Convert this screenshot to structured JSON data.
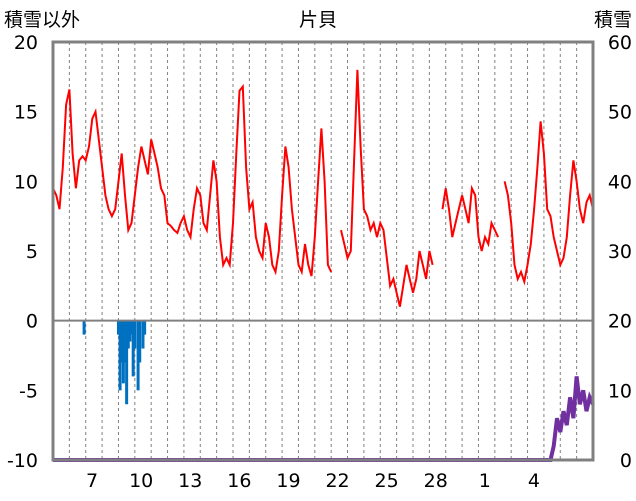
{
  "chart_data": {
    "type": "combo",
    "title": "片貝",
    "left_axis_label": "積雪以外",
    "right_axis_label": "積雪",
    "left_ylim": [
      -10,
      20
    ],
    "left_ticks": [
      "20",
      "15",
      "10",
      "5",
      "0",
      "-5",
      "-10"
    ],
    "right_ylim": [
      0,
      60
    ],
    "right_ticks": [
      "60",
      "50",
      "40",
      "30",
      "20",
      "10",
      "0"
    ],
    "x_tick_labels": [
      "7",
      "10",
      "13",
      "16",
      "19",
      "22",
      "25",
      "28",
      "1",
      "4"
    ],
    "x_tick_days": [
      3,
      6,
      9,
      12,
      15,
      18,
      21,
      24,
      27,
      30
    ],
    "x_range": [
      0,
      33
    ],
    "grid": "vertical-dashed",
    "colors": {
      "temperature": "#ff0000",
      "precipitation": "#0070c0",
      "snow_depth": "#7030a0",
      "frame": "#808080"
    },
    "temperature": [
      [
        0,
        9.5
      ],
      [
        0.2,
        9.0
      ],
      [
        0.4,
        8.0
      ],
      [
        0.6,
        11.0
      ],
      [
        0.8,
        15.5
      ],
      [
        1.0,
        16.6
      ],
      [
        1.2,
        12.0
      ],
      [
        1.4,
        9.5
      ],
      [
        1.6,
        11.5
      ],
      [
        1.8,
        11.8
      ],
      [
        2.0,
        11.5
      ],
      [
        2.2,
        12.5
      ],
      [
        2.4,
        14.5
      ],
      [
        2.6,
        15.0
      ],
      [
        2.8,
        13.0
      ],
      [
        3.0,
        11.0
      ],
      [
        3.2,
        9.0
      ],
      [
        3.4,
        8.0
      ],
      [
        3.6,
        7.5
      ],
      [
        3.8,
        8.0
      ],
      [
        4.0,
        10.0
      ],
      [
        4.2,
        12.0
      ],
      [
        4.4,
        9.0
      ],
      [
        4.6,
        6.5
      ],
      [
        4.8,
        7.0
      ],
      [
        5.0,
        9.0
      ],
      [
        5.2,
        11.0
      ],
      [
        5.4,
        12.5
      ],
      [
        5.6,
        11.5
      ],
      [
        5.8,
        10.5
      ],
      [
        6.0,
        13.0
      ],
      [
        6.2,
        12.0
      ],
      [
        6.4,
        11.0
      ],
      [
        6.6,
        9.5
      ],
      [
        6.8,
        9.0
      ],
      [
        7.0,
        7.0
      ],
      [
        7.2,
        6.8
      ],
      [
        7.4,
        6.5
      ],
      [
        7.6,
        6.3
      ],
      [
        7.8,
        7.0
      ],
      [
        8.0,
        7.5
      ],
      [
        8.2,
        6.5
      ],
      [
        8.4,
        6.0
      ],
      [
        8.6,
        8.0
      ],
      [
        8.8,
        9.5
      ],
      [
        9.0,
        9.0
      ],
      [
        9.2,
        7.0
      ],
      [
        9.4,
        6.5
      ],
      [
        9.6,
        9.0
      ],
      [
        9.8,
        11.5
      ],
      [
        10.0,
        10.0
      ],
      [
        10.2,
        6.0
      ],
      [
        10.4,
        4.0
      ],
      [
        10.6,
        4.5
      ],
      [
        10.8,
        4.0
      ],
      [
        11.0,
        7.0
      ],
      [
        11.2,
        12.0
      ],
      [
        11.4,
        16.5
      ],
      [
        11.6,
        16.8
      ],
      [
        11.8,
        11.0
      ],
      [
        12.0,
        8.0
      ],
      [
        12.2,
        8.5
      ],
      [
        12.4,
        6.0
      ],
      [
        12.6,
        5.0
      ],
      [
        12.8,
        4.5
      ],
      [
        13.0,
        7.0
      ],
      [
        13.2,
        6.0
      ],
      [
        13.4,
        4.0
      ],
      [
        13.6,
        3.5
      ],
      [
        13.8,
        5.0
      ],
      [
        14.0,
        9.0
      ],
      [
        14.2,
        12.5
      ],
      [
        14.4,
        11.0
      ],
      [
        14.6,
        8.0
      ],
      [
        14.8,
        6.0
      ],
      [
        15.0,
        4.0
      ],
      [
        15.2,
        3.5
      ],
      [
        15.4,
        5.5
      ],
      [
        15.6,
        4.0
      ],
      [
        15.8,
        3.2
      ],
      [
        16.0,
        6.0
      ],
      [
        16.2,
        10.0
      ],
      [
        16.4,
        13.8
      ],
      [
        16.6,
        10.0
      ],
      [
        16.8,
        4.0
      ],
      [
        17.0,
        3.5
      ]
    ],
    "temperature_2": [
      [
        17.6,
        6.5
      ],
      [
        17.8,
        5.5
      ],
      [
        18.0,
        4.5
      ],
      [
        18.2,
        5.0
      ],
      [
        18.4,
        11.5
      ],
      [
        18.6,
        18.0
      ],
      [
        18.8,
        12.5
      ],
      [
        19.0,
        8.0
      ],
      [
        19.2,
        7.5
      ],
      [
        19.4,
        6.5
      ],
      [
        19.6,
        7.0
      ],
      [
        19.8,
        6.0
      ],
      [
        20.0,
        7.0
      ],
      [
        20.2,
        6.5
      ],
      [
        20.4,
        4.5
      ],
      [
        20.6,
        2.5
      ],
      [
        20.8,
        3.0
      ],
      [
        21.0,
        2.0
      ],
      [
        21.2,
        1.0
      ],
      [
        21.4,
        2.5
      ],
      [
        21.6,
        4.0
      ],
      [
        21.8,
        3.0
      ],
      [
        22.0,
        2.0
      ],
      [
        22.2,
        3.0
      ],
      [
        22.4,
        5.0
      ],
      [
        22.6,
        4.0
      ],
      [
        22.8,
        3.0
      ],
      [
        23.0,
        5.0
      ],
      [
        23.2,
        4.0
      ]
    ],
    "temperature_3": [
      [
        23.8,
        8.0
      ],
      [
        24.0,
        9.5
      ],
      [
        24.2,
        8.0
      ],
      [
        24.4,
        6.0
      ],
      [
        24.6,
        7.0
      ],
      [
        24.8,
        8.0
      ],
      [
        25.0,
        9.0
      ],
      [
        25.2,
        8.0
      ],
      [
        25.4,
        7.0
      ],
      [
        25.6,
        9.5
      ],
      [
        25.8,
        9.0
      ],
      [
        26.0,
        6.0
      ],
      [
        26.2,
        5.0
      ],
      [
        26.4,
        6.0
      ],
      [
        26.6,
        5.5
      ],
      [
        26.8,
        7.0
      ],
      [
        27.0,
        6.5
      ],
      [
        27.2,
        6.0
      ]
    ],
    "temperature_4": [
      [
        27.6,
        10.0
      ],
      [
        27.8,
        9.0
      ],
      [
        28.0,
        7.0
      ],
      [
        28.2,
        4.0
      ],
      [
        28.4,
        3.0
      ],
      [
        28.6,
        3.5
      ],
      [
        28.8,
        2.8
      ],
      [
        29.0,
        4.0
      ],
      [
        29.2,
        5.5
      ],
      [
        29.4,
        8.0
      ],
      [
        29.6,
        11.0
      ],
      [
        29.8,
        14.3
      ],
      [
        30.0,
        12.0
      ],
      [
        30.2,
        8.0
      ],
      [
        30.4,
        7.5
      ],
      [
        30.6,
        6.0
      ],
      [
        30.8,
        5.0
      ],
      [
        31.0,
        4.0
      ],
      [
        31.2,
        4.5
      ],
      [
        31.4,
        6.0
      ],
      [
        31.6,
        9.0
      ],
      [
        31.8,
        11.5
      ],
      [
        32.0,
        10.0
      ],
      [
        32.2,
        8.0
      ],
      [
        32.4,
        7.0
      ],
      [
        32.6,
        8.5
      ],
      [
        32.8,
        9.0
      ],
      [
        33.0,
        8.0
      ]
    ],
    "precipitation": [
      [
        1.9,
        -1.0
      ],
      [
        4.0,
        -1.0
      ],
      [
        4.1,
        -5.0
      ],
      [
        4.2,
        -3.0
      ],
      [
        4.3,
        -4.5
      ],
      [
        4.4,
        -3.0
      ],
      [
        4.5,
        -6.0
      ],
      [
        4.6,
        -2.0
      ],
      [
        4.7,
        -1.5
      ],
      [
        4.8,
        -1.0
      ],
      [
        4.9,
        -4.0
      ],
      [
        5.0,
        -2.0
      ],
      [
        5.2,
        -5.0
      ],
      [
        5.3,
        -3.0
      ],
      [
        5.5,
        -2.0
      ],
      [
        5.6,
        -1.0
      ]
    ],
    "snow_depth": [
      [
        0,
        0
      ],
      [
        30.4,
        0
      ],
      [
        30.6,
        2
      ],
      [
        30.8,
        6
      ],
      [
        31.0,
        4
      ],
      [
        31.2,
        7
      ],
      [
        31.4,
        5
      ],
      [
        31.6,
        9
      ],
      [
        31.8,
        6
      ],
      [
        32.0,
        12
      ],
      [
        32.2,
        8
      ],
      [
        32.4,
        10
      ],
      [
        32.6,
        7
      ],
      [
        32.8,
        9
      ],
      [
        33.0,
        8
      ]
    ]
  }
}
